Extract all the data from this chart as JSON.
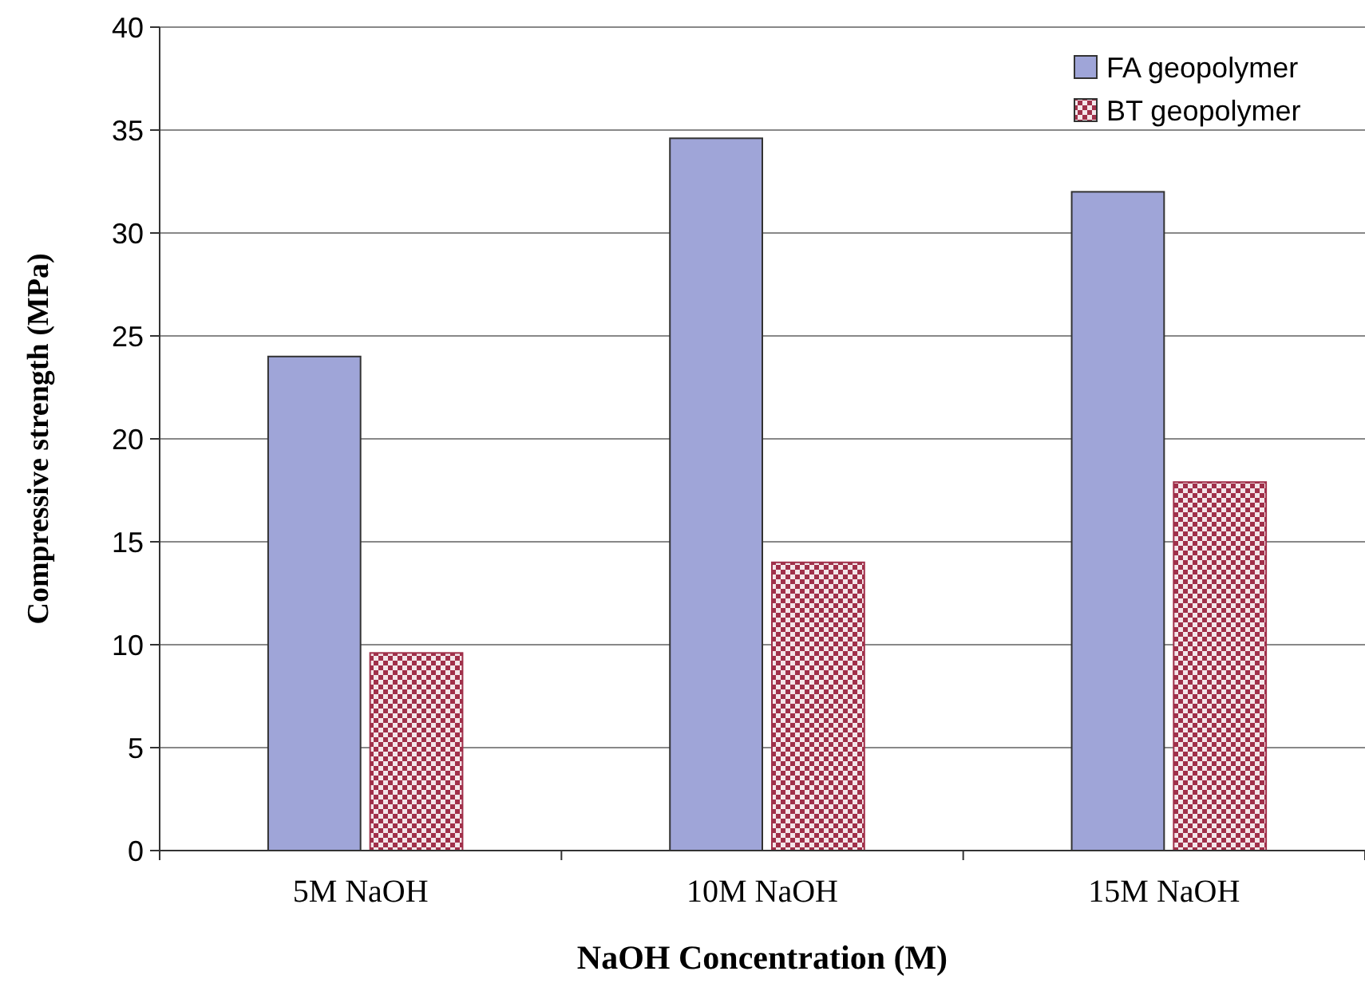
{
  "chart_data": {
    "type": "bar",
    "xlabel": "NaOH Concentration (M)",
    "ylabel": "Compressive strength (MPa)",
    "categories": [
      "5M NaOH",
      "10M NaOH",
      "15M NaOH"
    ],
    "series": [
      {
        "name": "FA geopolymer",
        "color": "#9fa5d8",
        "values": [
          24,
          34.6,
          32
        ]
      },
      {
        "name": "BT geopolymer",
        "color": "#a0304a",
        "values": [
          9.6,
          14,
          17.9
        ]
      }
    ],
    "ylim": [
      0,
      40
    ],
    "yticks": [
      0,
      5,
      10,
      15,
      20,
      25,
      30,
      35,
      40
    ],
    "grid": "y",
    "legend": "top right"
  }
}
